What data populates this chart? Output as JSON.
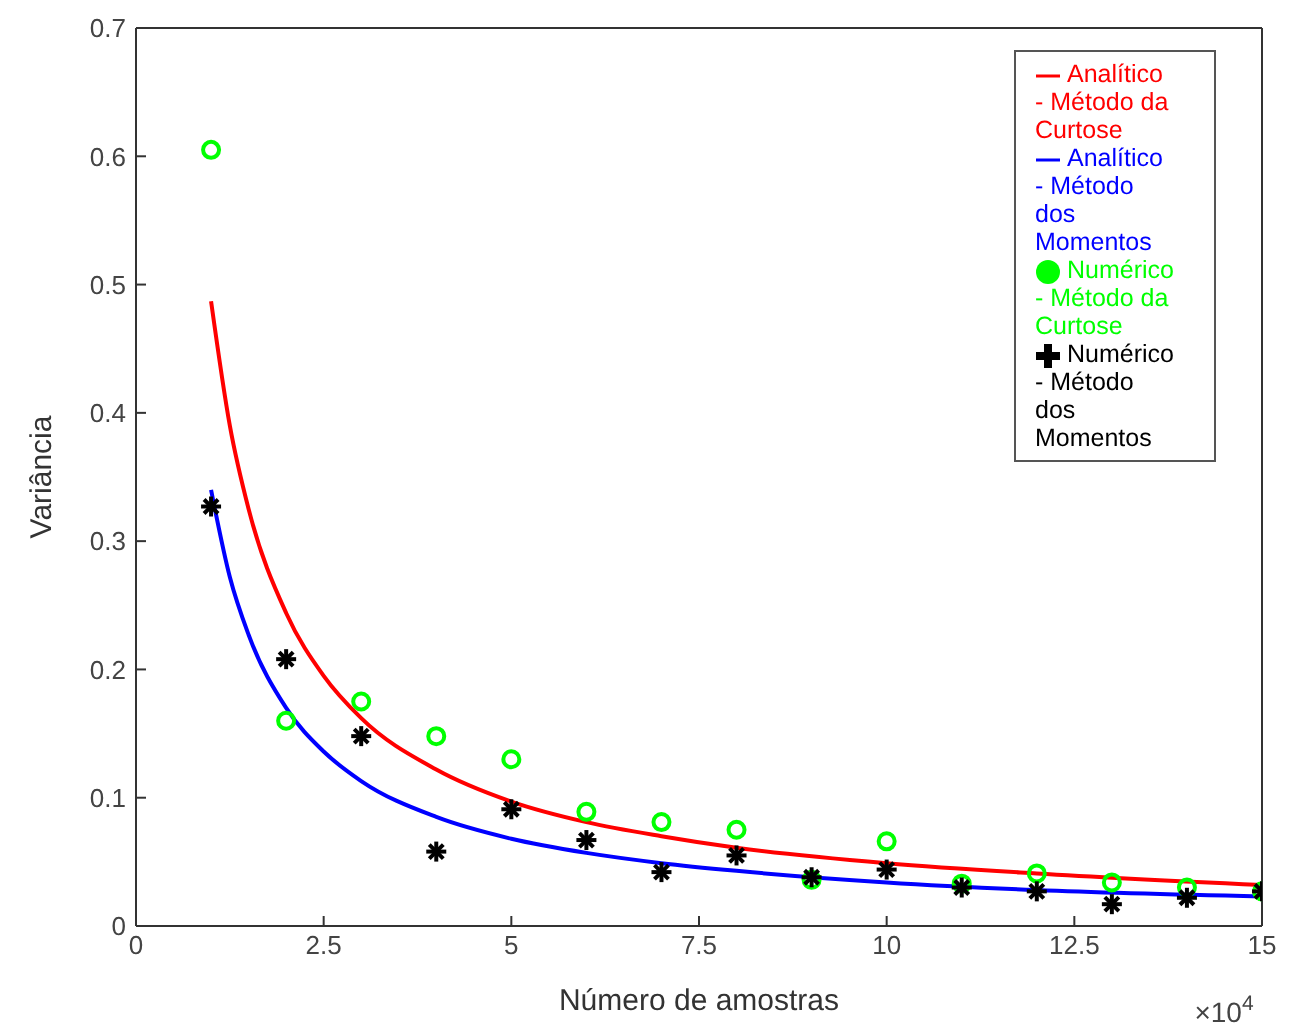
{
  "chart_data": {
    "type": "scatter",
    "xlabel": "Número de amostras",
    "ylabel": "Variância",
    "annotations": [
      "×10$^{4}$"
    ],
    "xlim": [
      0,
      15
    ],
    "xticks": [
      0,
      2.5,
      5,
      7.5,
      10,
      12.5,
      15
    ],
    "ylim": [
      0,
      0.7
    ],
    "yticks": [
      0,
      0.1,
      0.2,
      0.3,
      0.4,
      0.5,
      0.6,
      0.7
    ],
    "grid": false,
    "legend": "top right",
    "series": [
      {
        "name": "Numérico - Método da Curtose",
        "marker": "circle",
        "color": "#00ff00",
        "x": [
          1,
          2,
          3,
          4,
          5,
          6,
          7,
          8,
          9,
          10,
          11,
          12,
          13,
          14,
          15
        ],
        "values": [
          0.605,
          0.16,
          0.175,
          0.148,
          0.13,
          0.089,
          0.081,
          0.075,
          0.036,
          0.066,
          0.033,
          0.041,
          0.034,
          0.03,
          0.027
        ]
      },
      {
        "name": "Analítico - Método da Curtose",
        "type": "line",
        "marker": "none",
        "line_style": "solid",
        "color": "#ff0000",
        "x": [
          1,
          1.25,
          1.5,
          2,
          2.5,
          3,
          4,
          5,
          6,
          7,
          8,
          10,
          12,
          15
        ],
        "values": [
          0.487,
          0.39,
          0.325,
          0.244,
          0.195,
          0.162,
          0.122,
          0.097,
          0.081,
          0.07,
          0.061,
          0.049,
          0.041,
          0.032
        ]
      },
      {
        "name": "Numérico - Método dos Momentos",
        "marker": "cross",
        "color": "#000000",
        "x": [
          1,
          2,
          3,
          4,
          5,
          6,
          7,
          8,
          9,
          10,
          11,
          12,
          13,
          14,
          15
        ],
        "values": [
          0.327,
          0.208,
          0.148,
          0.058,
          0.091,
          0.067,
          0.042,
          0.055,
          0.038,
          0.044,
          0.03,
          0.027,
          0.017,
          0.022,
          0.027
        ]
      },
      {
        "name": "Analítico - Método dos Momentos",
        "type": "line",
        "marker": "none",
        "line_style": "solid",
        "color": "#0000ff",
        "x": [
          1,
          1.25,
          1.5,
          2,
          2.5,
          3,
          4,
          5,
          6,
          7,
          8,
          10,
          12,
          15
        ],
        "values": [
          0.34,
          0.272,
          0.227,
          0.17,
          0.136,
          0.113,
          0.085,
          0.068,
          0.057,
          0.049,
          0.043,
          0.034,
          0.028,
          0.023
        ]
      }
    ]
  }
}
